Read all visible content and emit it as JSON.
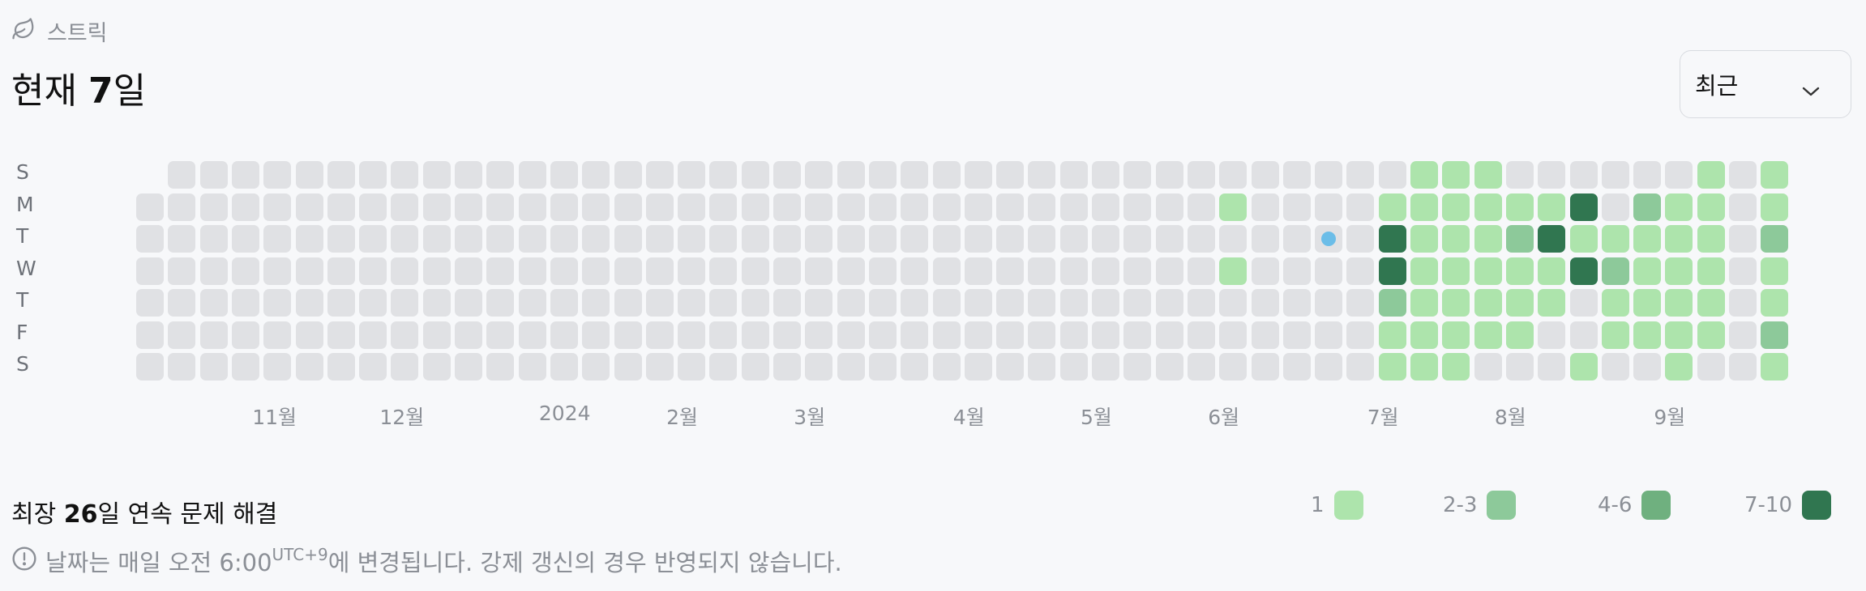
{
  "header": {
    "section_label": "스트릭",
    "title_prefix": "현재 ",
    "title_number": "7",
    "title_suffix": "일"
  },
  "dropdown": {
    "selected": "최근"
  },
  "day_labels": [
    "S",
    "M",
    "T",
    "W",
    "T",
    "F",
    "S"
  ],
  "month_labels": [
    {
      "label": "11월",
      "week": 4
    },
    {
      "label": "12월",
      "week": 8
    },
    {
      "label": "2024",
      "week": 13
    },
    {
      "label": "2월",
      "week": 17
    },
    {
      "label": "3월",
      "week": 21
    },
    {
      "label": "4월",
      "week": 26
    },
    {
      "label": "5월",
      "week": 30
    },
    {
      "label": "6월",
      "week": 34
    },
    {
      "label": "7월",
      "week": 39
    },
    {
      "label": "8월",
      "week": 43
    },
    {
      "label": "9월",
      "week": 48
    }
  ],
  "colors": {
    "empty": "#e0e1e4",
    "level1": "#ade4ac",
    "level2": "#8dc99a",
    "level3": "#6fb07f",
    "level4": "#307650",
    "today_dot": "#6bbde8"
  },
  "heatmap": {
    "weeks": 52,
    "empty_cells": [
      [
        0,
        0
      ]
    ],
    "today_marker": [
      37,
      2
    ],
    "counts": [
      [
        34,
        1,
        1
      ],
      [
        34,
        3,
        1
      ],
      [
        39,
        1,
        1
      ],
      [
        39,
        2,
        10
      ],
      [
        39,
        3,
        10
      ],
      [
        39,
        4,
        2
      ],
      [
        39,
        5,
        1
      ],
      [
        39,
        6,
        1
      ],
      [
        40,
        0,
        1
      ],
      [
        40,
        1,
        1
      ],
      [
        40,
        2,
        1
      ],
      [
        40,
        3,
        1
      ],
      [
        40,
        4,
        1
      ],
      [
        40,
        5,
        1
      ],
      [
        40,
        6,
        1
      ],
      [
        41,
        0,
        1
      ],
      [
        41,
        1,
        1
      ],
      [
        41,
        2,
        1
      ],
      [
        41,
        3,
        1
      ],
      [
        41,
        4,
        1
      ],
      [
        41,
        5,
        1
      ],
      [
        41,
        6,
        1
      ],
      [
        42,
        0,
        1
      ],
      [
        42,
        1,
        1
      ],
      [
        42,
        2,
        1
      ],
      [
        42,
        3,
        1
      ],
      [
        42,
        4,
        1
      ],
      [
        42,
        5,
        1
      ],
      [
        43,
        1,
        1
      ],
      [
        43,
        2,
        2
      ],
      [
        43,
        3,
        1
      ],
      [
        43,
        4,
        1
      ],
      [
        43,
        5,
        1
      ],
      [
        44,
        1,
        1
      ],
      [
        44,
        2,
        10
      ],
      [
        44,
        3,
        1
      ],
      [
        44,
        4,
        1
      ],
      [
        45,
        1,
        10
      ],
      [
        45,
        2,
        1
      ],
      [
        45,
        3,
        10
      ],
      [
        45,
        6,
        1
      ],
      [
        46,
        2,
        1
      ],
      [
        46,
        3,
        2
      ],
      [
        46,
        4,
        1
      ],
      [
        46,
        5,
        1
      ],
      [
        47,
        1,
        2
      ],
      [
        47,
        2,
        1
      ],
      [
        47,
        3,
        1
      ],
      [
        47,
        4,
        1
      ],
      [
        47,
        5,
        1
      ],
      [
        48,
        1,
        1
      ],
      [
        48,
        2,
        1
      ],
      [
        48,
        3,
        1
      ],
      [
        48,
        4,
        1
      ],
      [
        48,
        5,
        1
      ],
      [
        48,
        6,
        1
      ],
      [
        49,
        0,
        1
      ],
      [
        49,
        1,
        1
      ],
      [
        49,
        2,
        1
      ],
      [
        49,
        3,
        1
      ],
      [
        49,
        4,
        1
      ],
      [
        49,
        5,
        1
      ],
      [
        51,
        0,
        1
      ],
      [
        51,
        1,
        1
      ],
      [
        51,
        2,
        2
      ],
      [
        51,
        3,
        1
      ],
      [
        51,
        4,
        1
      ],
      [
        51,
        5,
        2
      ],
      [
        51,
        6,
        1
      ]
    ]
  },
  "longest": {
    "prefix": "최장 ",
    "number": "26",
    "suffix": "일 연속 문제 해결"
  },
  "legend": [
    {
      "label": "1",
      "color": "#ade4ac"
    },
    {
      "label": "2-3",
      "color": "#8dc99a"
    },
    {
      "label": "4-6",
      "color": "#6fb07f"
    },
    {
      "label": "7-10",
      "color": "#307650"
    }
  ],
  "note": {
    "text_before": "날짜는 매일 오전 6:00",
    "superscript": "UTC+9",
    "text_after": "에 변경됩니다. 강제 갱신의 경우 반영되지 않습니다."
  }
}
